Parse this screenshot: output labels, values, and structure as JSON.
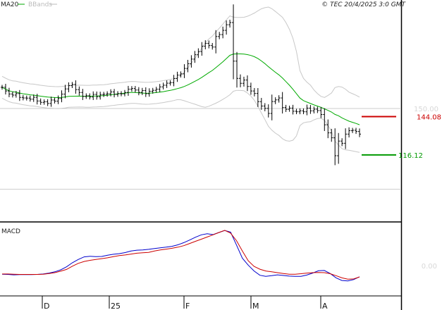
{
  "header": {
    "legend_ma": "MA20",
    "legend_bb": "BBands",
    "legend_ma_color": "#00aa00",
    "legend_bb_color": "#bbbbbb",
    "copyright": "© TEC 20/4/2025 3:0 GMT"
  },
  "macd_panel": {
    "title": "MACD"
  },
  "colors": {
    "candle": "#000000",
    "ma20": "#00aa00",
    "bbands": "#c8c8c8",
    "resistance": "#cc0000",
    "support": "#009900",
    "macd": "#0000cc",
    "signal": "#cc0000",
    "grid": "#cccccc"
  },
  "chart_data": [
    {
      "type": "ohlc",
      "x_ticks": [
        "D",
        "25",
        "F",
        "M",
        "A"
      ],
      "y_tick_labels": [
        {
          "label": "150.00",
          "value": 150.0
        }
      ],
      "y_range": [
        80,
        220
      ],
      "levels": [
        {
          "name": "resistance",
          "label": "144.08",
          "value": 144.08
        },
        {
          "name": "support",
          "label": "116.12",
          "value": 116.12
        }
      ],
      "series": [
        {
          "name": "MA20",
          "legend": true
        },
        {
          "name": "BBands",
          "legend": true
        }
      ],
      "close": [
        165.5,
        162.8,
        160.6,
        159.8,
        160.9,
        158.1,
        157.7,
        157.6,
        156.8,
        158.2,
        155.5,
        154.5,
        154.9,
        153.7,
        156.2,
        155.4,
        157.3,
        160.5,
        164.3,
        166.7,
        167.6,
        163.8,
        161.7,
        158.8,
        159.3,
        158.4,
        160.3,
        158.6,
        160.2,
        160.4,
        160.8,
        162.1,
        160.3,
        160.9,
        160.7,
        161.7,
        164.1,
        164.6,
        163.5,
        161.8,
        163.1,
        160.8,
        162.6,
        163.3,
        164.1,
        165.8,
        167.0,
        168.5,
        168.9,
        171.9,
        174.4,
        175.3,
        179.3,
        182.7,
        186.1,
        189.3,
        191.6,
        195.5,
        197.6,
        196.0,
        194.9,
        202.6,
        204.0,
        207.1,
        211.2,
        212.8,
        184.6,
        172.0,
        168.4,
        170.8,
        166.1,
        162.8,
        161.0,
        155.0,
        151.8,
        150.1,
        146.4,
        155.1,
        156.3,
        157.7,
        150.7,
        149.4,
        150.3,
        148.0,
        147.6,
        148.3,
        147.6,
        150.3,
        148.3,
        149.5,
        148.5,
        145.6,
        138.1,
        132.2,
        128.6,
        115.5,
        126.2,
        124.6,
        131.3,
        133.8,
        134.1,
        133.2,
        131.3
      ],
      "ma20": [
        170.8,
        168.9,
        167.2,
        165.7,
        164.5,
        163.3,
        162.5,
        161.8,
        161.2,
        160.7,
        160.2,
        159.8,
        159.5,
        159.3,
        159.2,
        159.1,
        159.1,
        159.1,
        159.2,
        159.4,
        159.7,
        160.1,
        160.5,
        161.0,
        161.4,
        161.9,
        162.2,
        162.3,
        162.4,
        162.5,
        162.7,
        163.0,
        163.5,
        164.1,
        164.8,
        165.6,
        166.4,
        167.3,
        168.3,
        169.4,
        170.7,
        172.2,
        174.0,
        176.2,
        178.8,
        181.7,
        184.7,
        187.6,
        190.1,
        191.8,
        192.3,
        191.8,
        190.9,
        189.7,
        188.3,
        186.7,
        184.8,
        182.6,
        180.0,
        176.9,
        173.6,
        170.1,
        166.8,
        163.9,
        161.5,
        159.6,
        158.3,
        157.6,
        157.2,
        156.8,
        156.3,
        155.4,
        154.3,
        153.1,
        151.9,
        150.8,
        149.7,
        148.6,
        147.5,
        146.4,
        145.3,
        144.2,
        142.9,
        141.4,
        139.7,
        137.8
      ]
    },
    {
      "type": "line",
      "title": "MACD",
      "y_tick_labels": [
        {
          "label": "0.00",
          "value": 0.0
        }
      ],
      "y_range": [
        -12,
        18
      ],
      "series": [
        {
          "name": "MACD",
          "color": "#0000cc",
          "values": [
            -3.9,
            -4.0,
            -4.2,
            -4.1,
            -4.1,
            -4.1,
            -4.0,
            -3.8,
            -3.4,
            -2.8,
            -1.9,
            -0.5,
            1.4,
            2.9,
            4.1,
            4.4,
            4.2,
            4.3,
            4.9,
            5.3,
            5.6,
            6.1,
            6.8,
            7.2,
            7.3,
            7.6,
            8.0,
            8.3,
            8.6,
            9.0,
            9.7,
            10.7,
            11.9,
            13.2,
            14.3,
            14.8,
            14.4,
            15.4,
            16.3,
            15.6,
            9.6,
            3.5,
            0.3,
            -2.4,
            -4.4,
            -4.9,
            -4.6,
            -4.2,
            -4.5,
            -4.8,
            -4.9,
            -4.9,
            -4.3,
            -3.4,
            -2.3,
            -2.2,
            -3.6,
            -5.6,
            -6.8,
            -7.0,
            -6.4,
            -5.1
          ]
        },
        {
          "name": "Signal",
          "color": "#cc0000",
          "values": [
            -3.8,
            -3.8,
            -3.9,
            -4.0,
            -4.0,
            -4.0,
            -4.0,
            -3.9,
            -3.6,
            -3.2,
            -2.5,
            -1.7,
            -0.2,
            1.1,
            2.0,
            2.5,
            2.9,
            3.3,
            3.7,
            4.2,
            4.7,
            5.0,
            5.4,
            5.8,
            6.0,
            6.2,
            6.8,
            7.3,
            7.7,
            8.1,
            8.6,
            9.3,
            10.3,
            11.3,
            12.3,
            13.3,
            14.3,
            15.4,
            16.4,
            15.1,
            11.6,
            6.8,
            2.3,
            -0.3,
            -1.6,
            -2.4,
            -2.8,
            -3.2,
            -3.6,
            -3.9,
            -3.9,
            -3.7,
            -3.4,
            -3.2,
            -3.1,
            -3.2,
            -3.7,
            -4.6,
            -5.6,
            -6.2,
            -6.1,
            -5.2
          ]
        }
      ]
    }
  ]
}
